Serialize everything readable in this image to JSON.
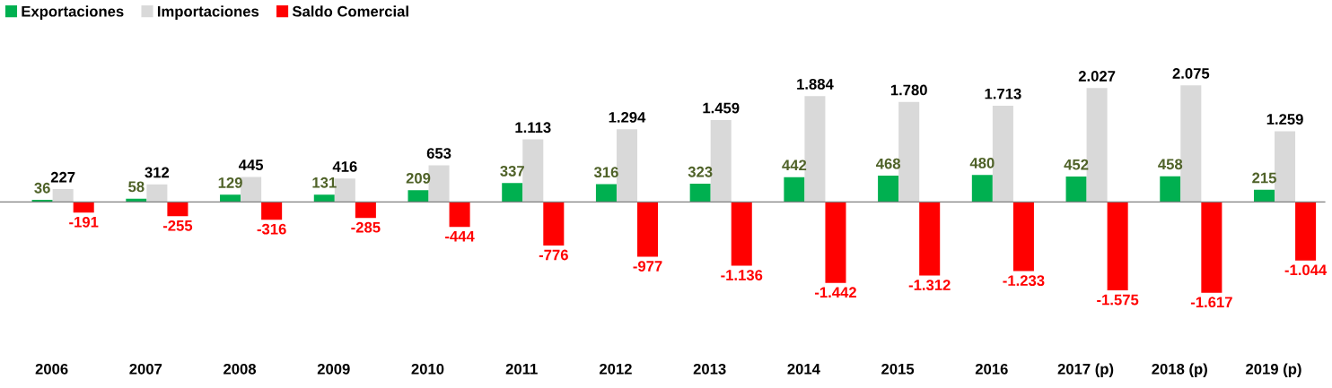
{
  "chart_data": {
    "type": "bar",
    "categories": [
      "2006",
      "2007",
      "2008",
      "2009",
      "2010",
      "2011",
      "2012",
      "2013",
      "2014",
      "2015",
      "2016",
      "2017 (p)",
      "2018 (p)",
      "2019 (p)"
    ],
    "series": [
      {
        "name": "Exportaciones",
        "color": "#00b050",
        "values": [
          36,
          58,
          129,
          131,
          209,
          337,
          316,
          323,
          442,
          468,
          480,
          452,
          458,
          215
        ],
        "value_labels": [
          "36",
          "58",
          "129",
          "131",
          "209",
          "337",
          "316",
          "323",
          "442",
          "468",
          "480",
          "452",
          "458",
          "215"
        ]
      },
      {
        "name": "Importaciones",
        "color": "#d9d9d9",
        "values": [
          227,
          312,
          445,
          416,
          653,
          1113,
          1294,
          1459,
          1884,
          1780,
          1713,
          2027,
          2075,
          1259
        ],
        "value_labels": [
          "227",
          "312",
          "445",
          "416",
          "653",
          "1.113",
          "1.294",
          "1.459",
          "1.884",
          "1.780",
          "1.713",
          "2.027",
          "2.075",
          "1.259"
        ]
      },
      {
        "name": "Saldo Comercial",
        "color": "#ff0000",
        "values": [
          -191,
          -255,
          -316,
          -285,
          -444,
          -776,
          -977,
          -1136,
          -1442,
          -1312,
          -1233,
          -1575,
          -1617,
          -1044
        ],
        "value_labels": [
          "-191",
          "-255",
          "-316",
          "-285",
          "-444",
          "-776",
          "-977",
          "-1.136",
          "-1.442",
          "-1.312",
          "-1.233",
          "-1.575",
          "-1.617",
          "-1.044"
        ]
      }
    ],
    "legend": "top left",
    "grid": false
  }
}
